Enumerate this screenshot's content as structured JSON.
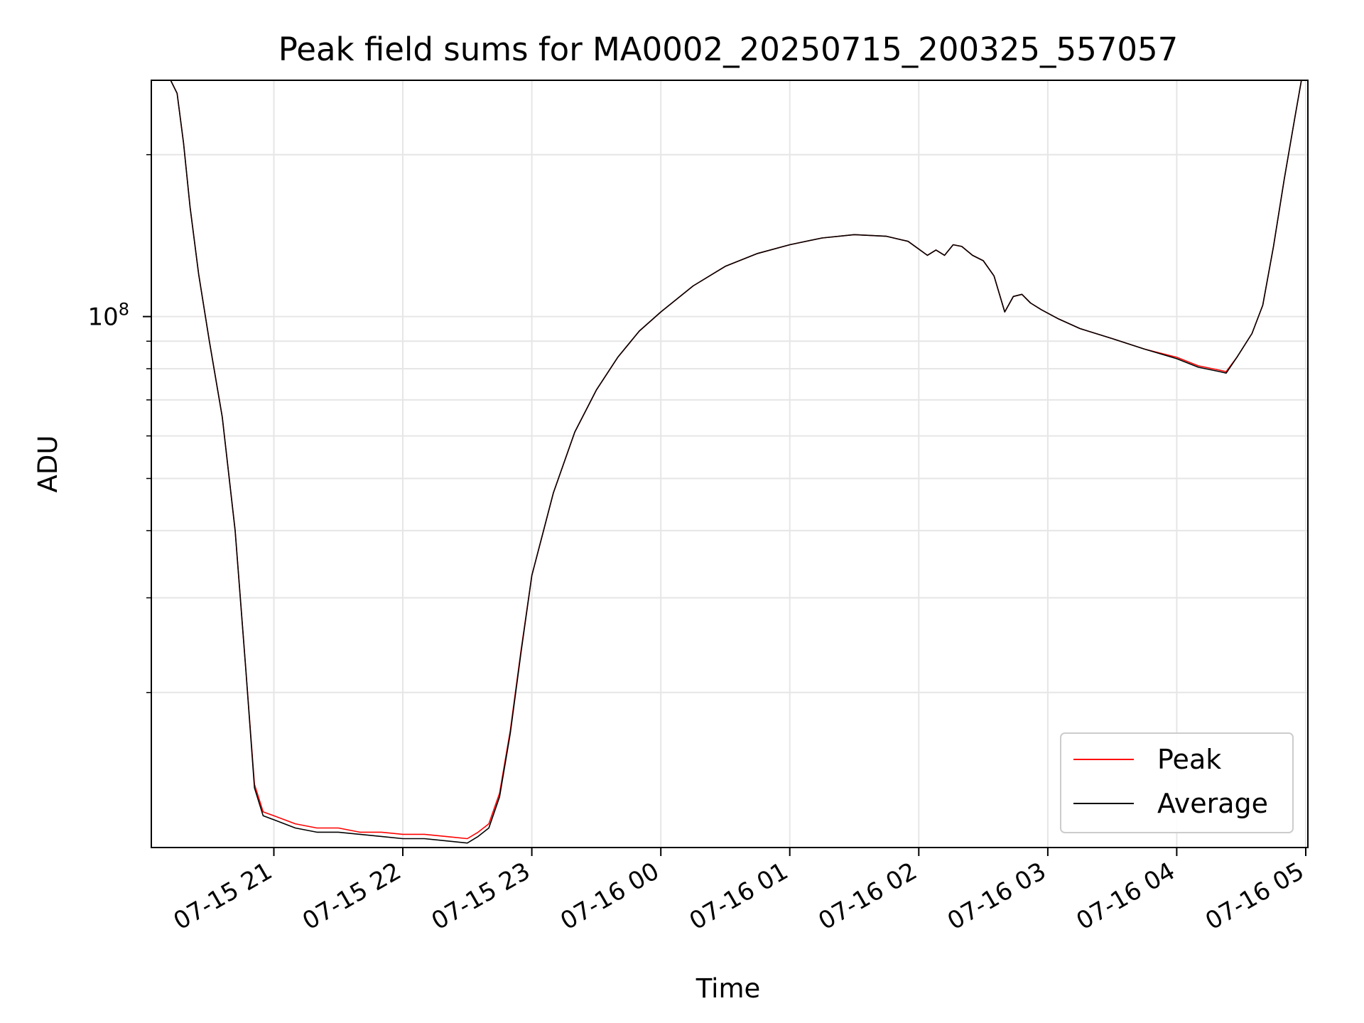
{
  "chart_data": {
    "type": "line",
    "title": "Peak field sums for MA0002_20250715_200325_557057",
    "xlabel": "Time",
    "ylabel": "ADU",
    "y_scale": "log",
    "grid": true,
    "legend_position": "bottom-right",
    "xlim": [
      "2025-07-15 20:03",
      "2025-07-16 05:01"
    ],
    "ylim": [
      10300000.0,
      275000000.0
    ],
    "x_ticks": [
      {
        "at": "2025-07-15 21:00",
        "label": "07-15 21"
      },
      {
        "at": "2025-07-15 22:00",
        "label": "07-15 22"
      },
      {
        "at": "2025-07-15 23:00",
        "label": "07-15 23"
      },
      {
        "at": "2025-07-16 00:00",
        "label": "07-16 00"
      },
      {
        "at": "2025-07-16 01:00",
        "label": "07-16 01"
      },
      {
        "at": "2025-07-16 02:00",
        "label": "07-16 02"
      },
      {
        "at": "2025-07-16 03:00",
        "label": "07-16 03"
      },
      {
        "at": "2025-07-16 04:00",
        "label": "07-16 04"
      },
      {
        "at": "2025-07-16 05:00",
        "label": "07-16 05"
      }
    ],
    "y_major_tick": {
      "value": 100000000.0,
      "label_base": "10",
      "label_exp": "8"
    },
    "y_minor_ticks": [
      20000000.0,
      30000000.0,
      40000000.0,
      50000000.0,
      60000000.0,
      70000000.0,
      80000000.0,
      90000000.0,
      200000000.0
    ],
    "series": [
      {
        "name": "Peak",
        "color": "#ff0000",
        "x": [
          "2025-07-15 20:03",
          "2025-07-15 20:12",
          "2025-07-15 20:15",
          "2025-07-15 20:18",
          "2025-07-15 20:21",
          "2025-07-15 20:25",
          "2025-07-15 20:30",
          "2025-07-15 20:36",
          "2025-07-15 20:42",
          "2025-07-15 20:47",
          "2025-07-15 20:51",
          "2025-07-15 20:55",
          "2025-07-15 21:00",
          "2025-07-15 21:10",
          "2025-07-15 21:20",
          "2025-07-15 21:30",
          "2025-07-15 21:40",
          "2025-07-15 21:50",
          "2025-07-15 22:00",
          "2025-07-15 22:10",
          "2025-07-15 22:20",
          "2025-07-15 22:30",
          "2025-07-15 22:35",
          "2025-07-15 22:40",
          "2025-07-15 22:45",
          "2025-07-15 22:50",
          "2025-07-15 22:55",
          "2025-07-15 23:00",
          "2025-07-15 23:10",
          "2025-07-15 23:20",
          "2025-07-15 23:30",
          "2025-07-15 23:40",
          "2025-07-15 23:50",
          "2025-07-16 00:00",
          "2025-07-16 00:15",
          "2025-07-16 00:30",
          "2025-07-16 00:45",
          "2025-07-16 01:00",
          "2025-07-16 01:15",
          "2025-07-16 01:30",
          "2025-07-16 01:45",
          "2025-07-16 01:55",
          "2025-07-16 02:04",
          "2025-07-16 02:08",
          "2025-07-16 02:12",
          "2025-07-16 02:16",
          "2025-07-16 02:20",
          "2025-07-16 02:25",
          "2025-07-16 02:30",
          "2025-07-16 02:35",
          "2025-07-16 02:40",
          "2025-07-16 02:44",
          "2025-07-16 02:48",
          "2025-07-16 02:52",
          "2025-07-16 02:57",
          "2025-07-16 03:05",
          "2025-07-16 03:15",
          "2025-07-16 03:30",
          "2025-07-16 03:45",
          "2025-07-16 04:00",
          "2025-07-16 04:10",
          "2025-07-16 04:20",
          "2025-07-16 04:23",
          "2025-07-16 04:28",
          "2025-07-16 04:35",
          "2025-07-16 04:40",
          "2025-07-16 04:45",
          "2025-07-16 04:50",
          "2025-07-16 04:55",
          "2025-07-16 04:58",
          "2025-07-16 05:01"
        ],
        "y": [
          275000000.0,
          275000000.0,
          260000000.0,
          210000000.0,
          160000000.0,
          120000000.0,
          90000000.0,
          65000000.0,
          40000000.0,
          22000000.0,
          13500000.0,
          12000000.0,
          11800000.0,
          11400000.0,
          11200000.0,
          11200000.0,
          11000000.0,
          11000000.0,
          10900000.0,
          10900000.0,
          10800000.0,
          10700000.0,
          11000000.0,
          11400000.0,
          13000000.0,
          17000000.0,
          24000000.0,
          33000000.0,
          47000000.0,
          61000000.0,
          73000000.0,
          84000000.0,
          94000000.0,
          102000000.0,
          114000000.0,
          124000000.0,
          131000000.0,
          136000000.0,
          140000000.0,
          142000000.0,
          141000000.0,
          138000000.0,
          130000000.0,
          133000000.0,
          130000000.0,
          136000000.0,
          135000000.0,
          130000000.0,
          127000000.0,
          119000000.0,
          102000000.0,
          109000000.0,
          110000000.0,
          106000000.0,
          103000000.0,
          99000000.0,
          95000000.0,
          91000000.0,
          87000000.0,
          84000000.0,
          81000000.0,
          79500000.0,
          79000000.0,
          84000000.0,
          93000000.0,
          105000000.0,
          135000000.0,
          180000000.0,
          235000000.0,
          275000000.0,
          275000000.0
        ]
      },
      {
        "name": "Average",
        "color": "#000000",
        "x": [
          "2025-07-15 20:03",
          "2025-07-15 20:12",
          "2025-07-15 20:15",
          "2025-07-15 20:18",
          "2025-07-15 20:21",
          "2025-07-15 20:25",
          "2025-07-15 20:30",
          "2025-07-15 20:36",
          "2025-07-15 20:42",
          "2025-07-15 20:47",
          "2025-07-15 20:51",
          "2025-07-15 20:55",
          "2025-07-15 21:00",
          "2025-07-15 21:10",
          "2025-07-15 21:20",
          "2025-07-15 21:30",
          "2025-07-15 21:40",
          "2025-07-15 21:50",
          "2025-07-15 22:00",
          "2025-07-15 22:10",
          "2025-07-15 22:20",
          "2025-07-15 22:30",
          "2025-07-15 22:35",
          "2025-07-15 22:40",
          "2025-07-15 22:45",
          "2025-07-15 22:50",
          "2025-07-15 22:55",
          "2025-07-15 23:00",
          "2025-07-15 23:10",
          "2025-07-15 23:20",
          "2025-07-15 23:30",
          "2025-07-15 23:40",
          "2025-07-15 23:50",
          "2025-07-16 00:00",
          "2025-07-16 00:15",
          "2025-07-16 00:30",
          "2025-07-16 00:45",
          "2025-07-16 01:00",
          "2025-07-16 01:15",
          "2025-07-16 01:30",
          "2025-07-16 01:45",
          "2025-07-16 01:55",
          "2025-07-16 02:04",
          "2025-07-16 02:08",
          "2025-07-16 02:12",
          "2025-07-16 02:16",
          "2025-07-16 02:20",
          "2025-07-16 02:25",
          "2025-07-16 02:30",
          "2025-07-16 02:35",
          "2025-07-16 02:40",
          "2025-07-16 02:44",
          "2025-07-16 02:48",
          "2025-07-16 02:52",
          "2025-07-16 02:57",
          "2025-07-16 03:05",
          "2025-07-16 03:15",
          "2025-07-16 03:30",
          "2025-07-16 03:45",
          "2025-07-16 04:00",
          "2025-07-16 04:10",
          "2025-07-16 04:20",
          "2025-07-16 04:23",
          "2025-07-16 04:28",
          "2025-07-16 04:35",
          "2025-07-16 04:40",
          "2025-07-16 04:45",
          "2025-07-16 04:50",
          "2025-07-16 04:55",
          "2025-07-16 04:58",
          "2025-07-16 05:01"
        ],
        "y": [
          275000000.0,
          275000000.0,
          260000000.0,
          210000000.0,
          160000000.0,
          120000000.0,
          90000000.0,
          65000000.0,
          40000000.0,
          22000000.0,
          13300000.0,
          11800000.0,
          11600000.0,
          11200000.0,
          11000000.0,
          11000000.0,
          10900000.0,
          10800000.0,
          10700000.0,
          10700000.0,
          10600000.0,
          10500000.0,
          10800000.0,
          11200000.0,
          12800000.0,
          16800000.0,
          23800000.0,
          33000000.0,
          47000000.0,
          61000000.0,
          73000000.0,
          84000000.0,
          94000000.0,
          102000000.0,
          114000000.0,
          124000000.0,
          131000000.0,
          136000000.0,
          140000000.0,
          142000000.0,
          141000000.0,
          138000000.0,
          130000000.0,
          133000000.0,
          130000000.0,
          136000000.0,
          135000000.0,
          130000000.0,
          127000000.0,
          119000000.0,
          102000000.0,
          109000000.0,
          110000000.0,
          106000000.0,
          103000000.0,
          99000000.0,
          95000000.0,
          91000000.0,
          87000000.0,
          83500000.0,
          80500000.0,
          79000000.0,
          78500000.0,
          84000000.0,
          93000000.0,
          105000000.0,
          135000000.0,
          180000000.0,
          235000000.0,
          275000000.0,
          275000000.0
        ]
      }
    ]
  }
}
